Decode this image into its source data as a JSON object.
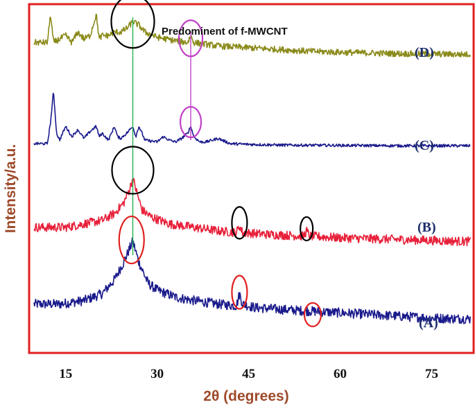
{
  "chart_data": {
    "type": "line",
    "title": "",
    "xlabel": "2θ (degrees)",
    "ylabel": "Intensity/a.u.",
    "xlim": [
      9,
      82
    ],
    "ylim": [
      0,
      100
    ],
    "x_ticks": [
      15,
      30,
      45,
      60,
      75
    ],
    "x_tick_labels": [
      "15",
      "30",
      "45",
      "60",
      "75"
    ],
    "grid": false,
    "annotations": {
      "predominant_label": "Predominent of f-MWCNT",
      "reference_lines": [
        {
          "x": 26,
          "color": "#22b14c",
          "from_series": "A",
          "to_series": "D"
        },
        {
          "x": 35.5,
          "color": "#c040c8",
          "from_series": "C",
          "to_series": "D"
        }
      ]
    },
    "series": [
      {
        "name": "A",
        "label": "(A)",
        "color": "#1a1a8c",
        "offset": 8,
        "noise": 1.4,
        "points": [
          [
            10,
            6
          ],
          [
            14,
            6
          ],
          [
            18,
            7
          ],
          [
            21,
            9
          ],
          [
            23,
            13
          ],
          [
            24.5,
            18
          ],
          [
            25.5,
            22
          ],
          [
            26,
            24
          ],
          [
            27,
            18
          ],
          [
            28.5,
            12
          ],
          [
            30,
            10
          ],
          [
            33,
            8
          ],
          [
            36,
            7
          ],
          [
            40,
            6
          ],
          [
            43,
            5.5
          ],
          [
            43.5,
            9
          ],
          [
            44,
            6
          ],
          [
            46,
            5
          ],
          [
            50,
            4.5
          ],
          [
            55,
            4
          ],
          [
            60,
            3.5
          ],
          [
            65,
            3
          ],
          [
            70,
            2.5
          ],
          [
            75,
            2
          ],
          [
            80,
            1.8
          ]
        ]
      },
      {
        "name": "B",
        "label": "(B)",
        "color": "#e8203a",
        "offset": 30,
        "noise": 1.3,
        "points": [
          [
            10,
            6
          ],
          [
            15,
            6
          ],
          [
            18,
            7
          ],
          [
            21,
            8
          ],
          [
            23,
            10
          ],
          [
            24.5,
            13
          ],
          [
            25.5,
            17
          ],
          [
            26,
            20
          ],
          [
            26.5,
            17
          ],
          [
            27.5,
            11
          ],
          [
            29,
            9
          ],
          [
            32,
            7
          ],
          [
            36,
            6
          ],
          [
            40,
            5
          ],
          [
            43,
            4.5
          ],
          [
            43.5,
            6.5
          ],
          [
            44,
            4.5
          ],
          [
            48,
            4
          ],
          [
            54,
            3.5
          ],
          [
            54.5,
            5
          ],
          [
            55,
            3.5
          ],
          [
            60,
            3
          ],
          [
            70,
            2.5
          ],
          [
            80,
            2
          ]
        ]
      },
      {
        "name": "C",
        "label": "(C)",
        "color": "#1a1a8c",
        "offset": 59,
        "noise": 0.4,
        "points": [
          [
            10,
            1
          ],
          [
            12,
            1
          ],
          [
            12.5,
            7
          ],
          [
            13,
            16
          ],
          [
            13.5,
            4
          ],
          [
            14,
            2
          ],
          [
            15,
            6
          ],
          [
            16,
            3
          ],
          [
            17,
            5
          ],
          [
            18,
            2.5
          ],
          [
            19,
            4.5
          ],
          [
            20,
            6
          ],
          [
            20.5,
            3
          ],
          [
            21,
            4
          ],
          [
            22,
            2
          ],
          [
            23,
            6
          ],
          [
            23.5,
            3
          ],
          [
            24,
            2.5
          ],
          [
            25,
            4
          ],
          [
            26,
            6
          ],
          [
            26.5,
            3
          ],
          [
            27,
            6
          ],
          [
            28,
            2
          ],
          [
            30,
            1.5
          ],
          [
            31,
            3
          ],
          [
            32,
            2
          ],
          [
            33,
            1.5
          ],
          [
            34,
            2.5
          ],
          [
            35,
            4
          ],
          [
            35.5,
            6
          ],
          [
            36,
            3
          ],
          [
            37,
            1.5
          ],
          [
            38,
            1.5
          ],
          [
            40,
            2.5
          ],
          [
            42,
            1
          ],
          [
            45,
            0.8
          ],
          [
            50,
            0.6
          ],
          [
            60,
            0.5
          ],
          [
            70,
            0.4
          ],
          [
            80,
            0.4
          ]
        ]
      },
      {
        "name": "D",
        "label": "(D)",
        "color": "#8a8a1a",
        "offset": 85,
        "noise": 0.9,
        "points": [
          [
            10,
            4
          ],
          [
            12,
            4
          ],
          [
            12.5,
            12
          ],
          [
            13,
            4
          ],
          [
            14,
            5
          ],
          [
            15,
            6
          ],
          [
            16,
            4
          ],
          [
            17,
            7
          ],
          [
            18,
            5
          ],
          [
            19,
            6
          ],
          [
            20,
            12
          ],
          [
            20.5,
            5
          ],
          [
            21,
            6
          ],
          [
            22,
            6
          ],
          [
            23,
            7
          ],
          [
            24,
            7
          ],
          [
            25,
            8
          ],
          [
            26,
            10
          ],
          [
            27,
            9
          ],
          [
            28,
            7
          ],
          [
            30,
            5.5
          ],
          [
            33,
            4.5
          ],
          [
            35,
            4
          ],
          [
            35.5,
            6
          ],
          [
            36,
            4
          ],
          [
            40,
            3
          ],
          [
            45,
            2.5
          ],
          [
            50,
            2
          ],
          [
            55,
            1.5
          ],
          [
            60,
            1.2
          ],
          [
            70,
            0.8
          ],
          [
            80,
            0.6
          ]
        ]
      }
    ]
  }
}
